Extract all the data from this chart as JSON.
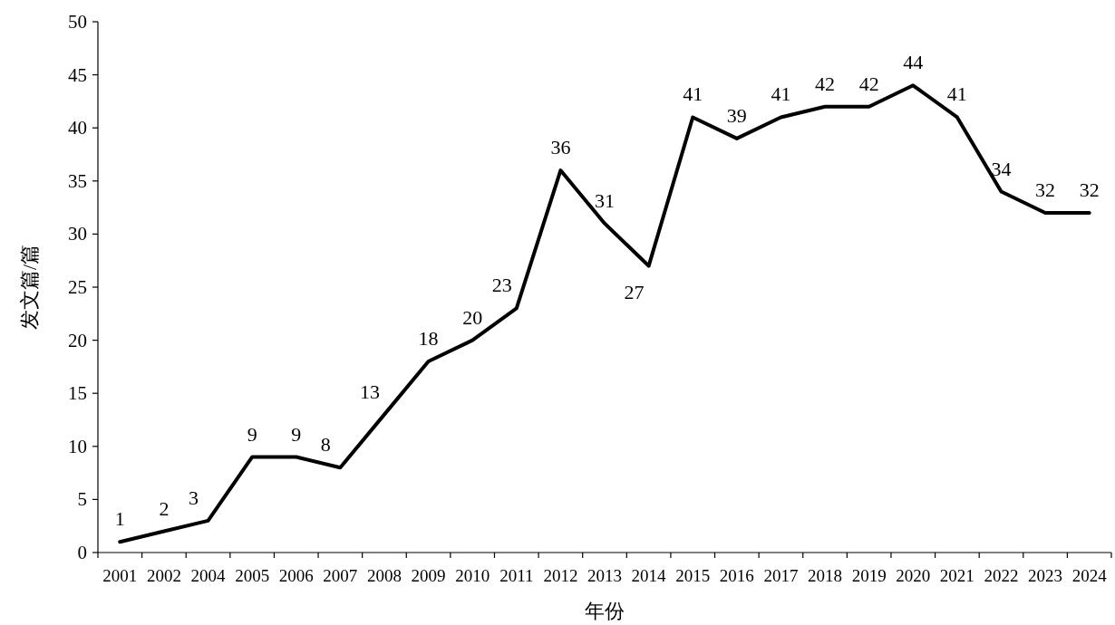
{
  "chart_data": {
    "type": "line",
    "xlabel": "年份",
    "ylabel": "发文篇/篇",
    "categories": [
      "2001",
      "2002",
      "2004",
      "2005",
      "2006",
      "2007",
      "2008",
      "2009",
      "2010",
      "2011",
      "2012",
      "2013",
      "2014",
      "2015",
      "2016",
      "2017",
      "2018",
      "2019",
      "2020",
      "2021",
      "2022",
      "2023",
      "2024"
    ],
    "values": [
      1,
      2,
      3,
      9,
      9,
      8,
      13,
      18,
      20,
      23,
      36,
      31,
      27,
      41,
      39,
      41,
      42,
      42,
      44,
      41,
      34,
      32,
      32
    ],
    "color": "#000000",
    "ylim": [
      0,
      50
    ],
    "yticks": [
      0,
      5,
      10,
      15,
      20,
      25,
      30,
      35,
      40,
      45,
      50
    ],
    "data_labels": true,
    "grid": false,
    "marker": "none",
    "line_style": "solid"
  }
}
